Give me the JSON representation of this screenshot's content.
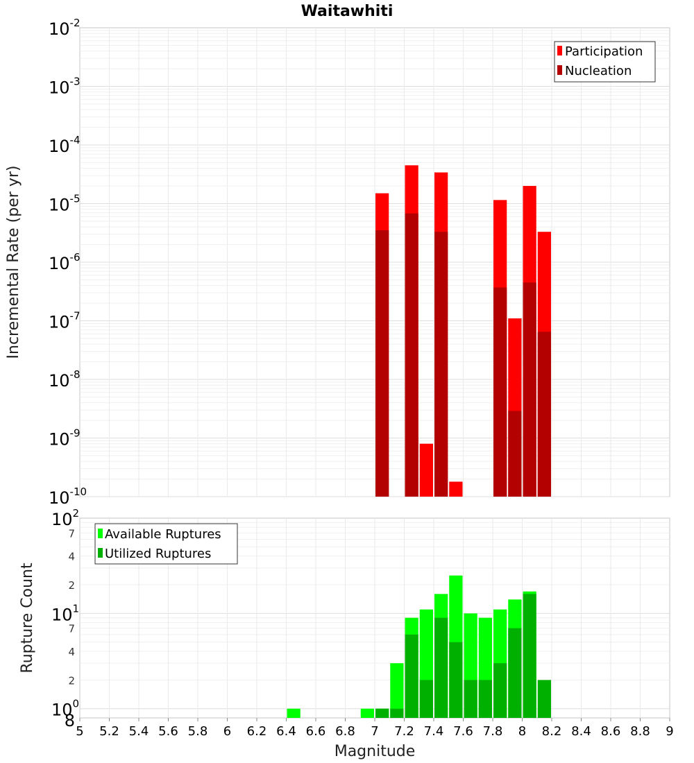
{
  "chart_data": [
    {
      "type": "bar",
      "title": "Waitawhiti",
      "ylabel": "Incremental Rate (per yr)",
      "xlabel": "",
      "yscale": "log",
      "ylim_exponents": [
        -10,
        -2
      ],
      "xlim": [
        5,
        9
      ],
      "bin_width": 0.1,
      "grid": true,
      "legend_position": "top-right",
      "series": [
        {
          "name": "Participation",
          "color": "#ff0000",
          "x": [
            7.05,
            7.25,
            7.35,
            7.45,
            7.55,
            7.85,
            7.95,
            8.05,
            8.15
          ],
          "values": [
            1.5e-05,
            4.5e-05,
            8e-10,
            3.4e-05,
            1.8e-10,
            1.15e-05,
            1.1e-07,
            2e-05,
            3.3e-06
          ]
        },
        {
          "name": "Nucleation",
          "color": "#b30000",
          "x": [
            7.05,
            7.25,
            7.45,
            7.85,
            7.95,
            8.05,
            8.15
          ],
          "values": [
            3.5e-06,
            6.8e-06,
            3.3e-06,
            3.7e-07,
            2.9e-09,
            4.5e-07,
            6.5e-08
          ]
        }
      ]
    },
    {
      "type": "bar",
      "title": "",
      "ylabel": "Rupture Count",
      "xlabel": "Magnitude",
      "yscale": "log",
      "ylim": [
        0.8,
        100
      ],
      "xlim": [
        5,
        9
      ],
      "bin_width": 0.1,
      "grid": true,
      "legend_position": "top-left",
      "x_ticks": [
        "5",
        "5.2",
        "5.4",
        "5.6",
        "5.8",
        "6",
        "6.2",
        "6.4",
        "6.6",
        "6.8",
        "7",
        "7.2",
        "7.4",
        "7.6",
        "7.8",
        "8",
        "8.2",
        "8.4",
        "8.6",
        "8.8",
        "9"
      ],
      "y_major_exponents": [
        "0",
        "1",
        "2"
      ],
      "y_minor_labels": [
        "8",
        "2",
        "4",
        "7",
        "2",
        "4",
        "7"
      ],
      "series": [
        {
          "name": "Available Ruptures",
          "color": "#00ff00",
          "x": [
            6.45,
            6.95,
            7.05,
            7.15,
            7.25,
            7.35,
            7.45,
            7.55,
            7.65,
            7.75,
            7.85,
            7.95,
            8.05
          ],
          "values": [
            1,
            1,
            1,
            3,
            9,
            11,
            16,
            25,
            10,
            9,
            11,
            14,
            17
          ]
        },
        {
          "name": "Utilized Ruptures",
          "color": "#00b000",
          "x": [
            7.05,
            7.15,
            7.25,
            7.35,
            7.45,
            7.55,
            7.65,
            7.75,
            7.85,
            7.95,
            8.05,
            8.15
          ],
          "values": [
            1,
            1,
            6,
            2,
            9,
            5,
            2,
            2,
            3,
            7,
            16,
            2
          ]
        }
      ]
    }
  ]
}
